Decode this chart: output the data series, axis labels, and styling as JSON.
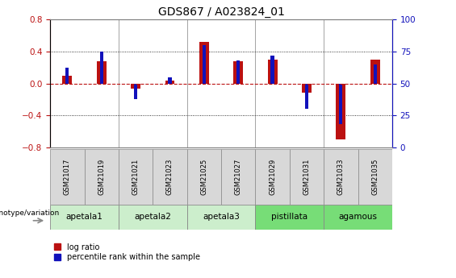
{
  "title": "GDS867 / A023824_01",
  "samples": [
    "GSM21017",
    "GSM21019",
    "GSM21021",
    "GSM21023",
    "GSM21025",
    "GSM21027",
    "GSM21029",
    "GSM21031",
    "GSM21033",
    "GSM21035"
  ],
  "log_ratio": [
    0.1,
    0.28,
    -0.07,
    0.04,
    0.52,
    0.28,
    0.3,
    -0.12,
    -0.7,
    0.3
  ],
  "percentile_rank_raw": [
    62,
    75,
    38,
    55,
    80,
    68,
    72,
    30,
    18,
    65
  ],
  "groups_info": [
    {
      "start": 0,
      "end": 1,
      "label": "apetala1",
      "color": "#cceecc"
    },
    {
      "start": 2,
      "end": 3,
      "label": "apetala2",
      "color": "#cceecc"
    },
    {
      "start": 4,
      "end": 5,
      "label": "apetala3",
      "color": "#cceecc"
    },
    {
      "start": 6,
      "end": 7,
      "label": "pistillata",
      "color": "#77dd77"
    },
    {
      "start": 8,
      "end": 9,
      "label": "agamous",
      "color": "#77dd77"
    }
  ],
  "ylim_left": [
    -0.8,
    0.8
  ],
  "ylim_right": [
    0,
    100
  ],
  "yticks_left": [
    -0.8,
    -0.4,
    0.0,
    0.4,
    0.8
  ],
  "yticks_right": [
    0,
    25,
    50,
    75,
    100
  ],
  "bar_color_red": "#bb1111",
  "bar_color_blue": "#1111bb",
  "red_bar_width": 0.28,
  "blue_bar_width": 0.1,
  "title_fontsize": 10,
  "legend_label_red": "log ratio",
  "legend_label_blue": "percentile rank within the sample",
  "genotype_label": "genotype/variation"
}
